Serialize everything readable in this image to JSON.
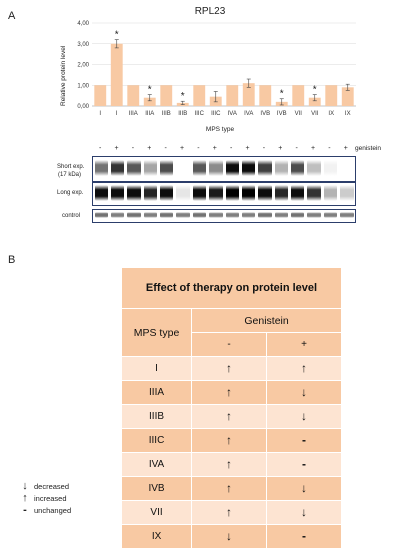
{
  "panel_a_letter": "A",
  "panel_b_letter": "B",
  "chart_data": {
    "type": "bar",
    "title": "RPL23",
    "ylabel": "Relative protein level",
    "xlabel": "MPS type",
    "yticks": [
      "0,00",
      "1,00",
      "2,00",
      "3,00",
      "4,00"
    ],
    "ylim": [
      0,
      4
    ],
    "categories": [
      "I",
      "I",
      "IIIA",
      "IIIA",
      "IIIB",
      "IIIB",
      "IIIC",
      "IIIC",
      "IVA",
      "IVA",
      "IVB",
      "IVB",
      "VII",
      "VII",
      "IX",
      "IX"
    ],
    "values": [
      1.0,
      3.0,
      1.0,
      0.4,
      1.0,
      0.15,
      1.0,
      0.45,
      1.0,
      1.1,
      1.0,
      0.2,
      1.0,
      0.4,
      1.0,
      0.9
    ],
    "errors": [
      0.02,
      0.2,
      0.02,
      0.15,
      0.02,
      0.08,
      0.02,
      0.25,
      0.02,
      0.2,
      0.02,
      0.15,
      0.02,
      0.15,
      0.02,
      0.15
    ],
    "significant": [
      false,
      true,
      false,
      true,
      false,
      true,
      false,
      false,
      false,
      false,
      false,
      true,
      false,
      true,
      false,
      false
    ],
    "significance_marker": "*",
    "bar_color": "#f8c9a3",
    "grid": true
  },
  "blot": {
    "genistein_label": "genistein",
    "lane_signs": [
      "-",
      "+",
      "-",
      "+",
      "-",
      "+",
      "-",
      "+",
      "-",
      "+",
      "-",
      "+",
      "-",
      "+",
      "-",
      "+"
    ],
    "short_exp_label_1": "Short exp.",
    "short_exp_label_2": "(17 kDa)",
    "long_exp_label": "Long exp.",
    "control_label": "control",
    "short_intensity": [
      0.55,
      0.8,
      0.65,
      0.35,
      0.7,
      0.0,
      0.65,
      0.45,
      0.95,
      0.95,
      0.75,
      0.3,
      0.7,
      0.25,
      0.05,
      0.0
    ],
    "long_intensity": [
      0.95,
      0.95,
      0.95,
      0.85,
      0.95,
      0.1,
      0.95,
      0.9,
      1.0,
      1.0,
      0.95,
      0.85,
      0.95,
      0.8,
      0.3,
      0.2
    ],
    "control_intensity": [
      0.55,
      0.5,
      0.55,
      0.5,
      0.55,
      0.5,
      0.55,
      0.5,
      0.5,
      0.5,
      0.55,
      0.5,
      0.55,
      0.5,
      0.5,
      0.5
    ]
  },
  "table": {
    "title": "Effect of therapy on protein level",
    "genistein_header": "Genistein",
    "mps_type_header": "MPS type",
    "minus_header": "-",
    "plus_header": "+",
    "rows": [
      {
        "type": "I",
        "minus": "up",
        "plus": "up"
      },
      {
        "type": "IIIA",
        "minus": "up",
        "plus": "down"
      },
      {
        "type": "IIIB",
        "minus": "up",
        "plus": "down"
      },
      {
        "type": "IIIC",
        "minus": "up",
        "plus": "unchanged"
      },
      {
        "type": "IVA",
        "minus": "up",
        "plus": "unchanged"
      },
      {
        "type": "IVB",
        "minus": "up",
        "plus": "down"
      },
      {
        "type": "VII",
        "minus": "up",
        "plus": "down"
      },
      {
        "type": "IX",
        "minus": "down",
        "plus": "unchanged"
      }
    ],
    "symbols": {
      "up": "↑",
      "down": "↓",
      "unchanged": "-"
    }
  },
  "legend": {
    "decreased": "decreased",
    "increased": "increased",
    "unchanged": "unchanged"
  }
}
